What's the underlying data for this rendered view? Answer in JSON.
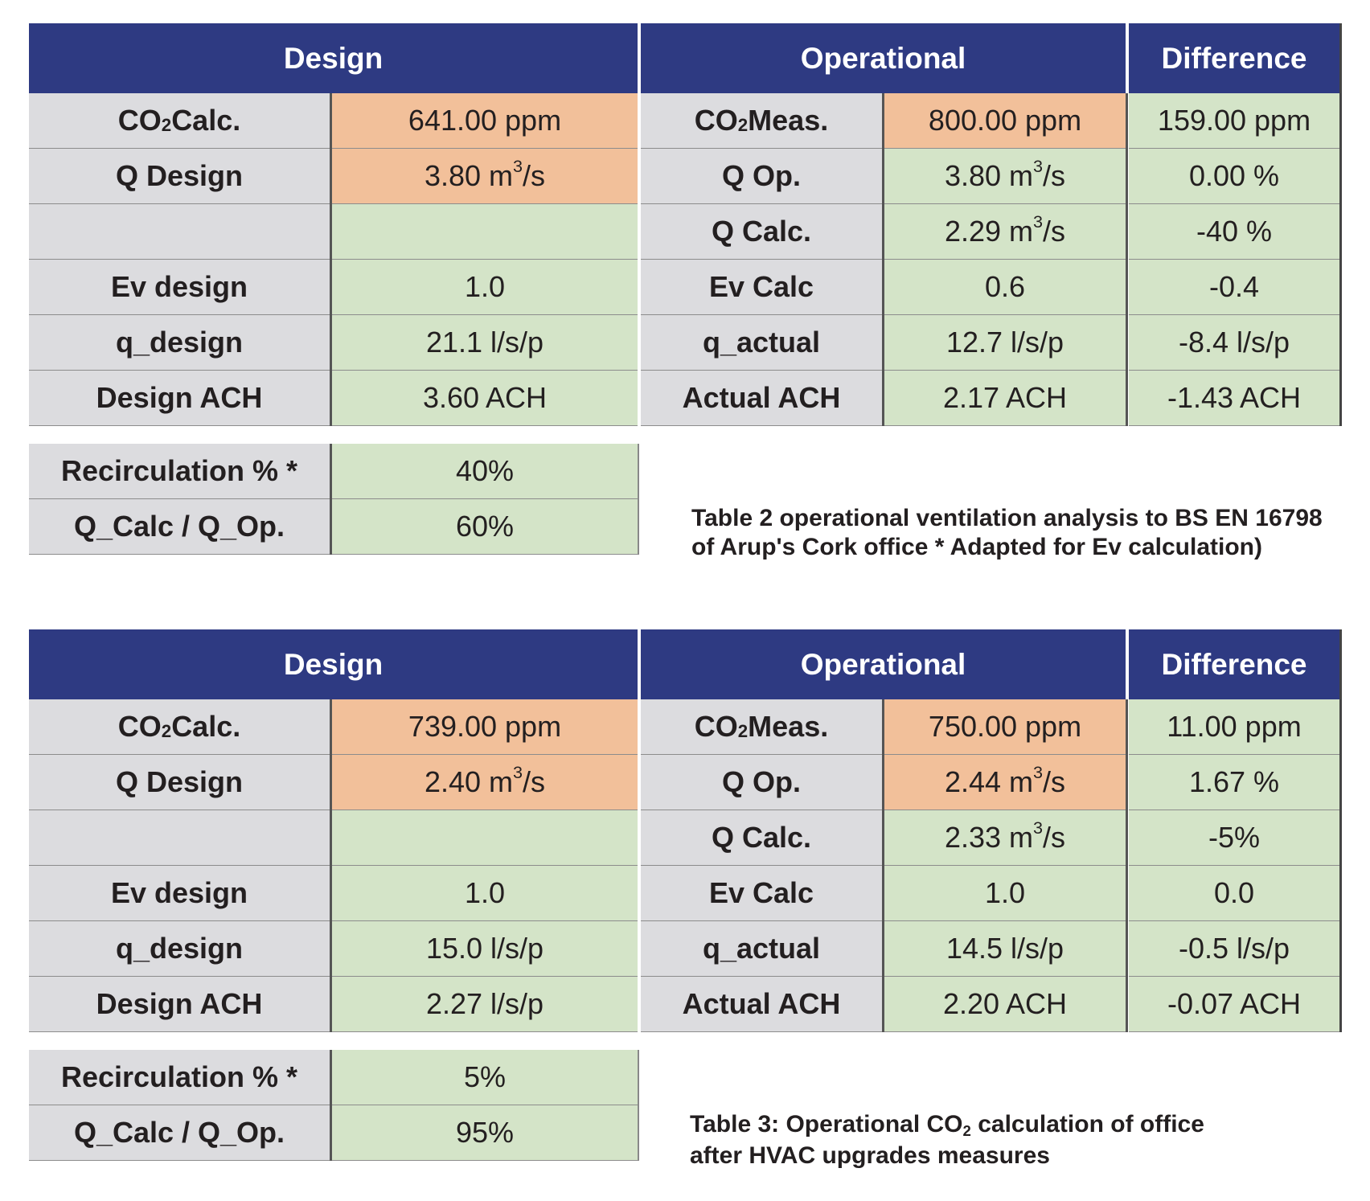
{
  "tables": [
    {
      "headers": {
        "design": "Design",
        "operational": "Operational",
        "difference": "Difference"
      },
      "rows": [
        {
          "design_label": "CO2 Calc.",
          "design_value": "641.00 ppm",
          "op_label": "CO2 Meas.",
          "op_value": "800.00 ppm",
          "difference": "159.00 ppm"
        },
        {
          "design_label": "Q Design",
          "design_value": "3.80 m3/s",
          "op_label": "Q Op.",
          "op_value": "3.80 m3/s",
          "difference": "0.00 %"
        },
        {
          "design_label": "",
          "design_value": "",
          "op_label": "Q Calc.",
          "op_value": "2.29 m3/s",
          "difference": "-40 %"
        },
        {
          "design_label": "Ev design",
          "design_value": "1.0",
          "op_label": "Ev Calc",
          "op_value": "0.6",
          "difference": "-0.4"
        },
        {
          "design_label": "q_design",
          "design_value": "21.1 l/s/p",
          "op_label": "q_actual",
          "op_value": "12.7 l/s/p",
          "difference": "-8.4 l/s/p"
        },
        {
          "design_label": "Design ACH",
          "design_value": "3.60 ACH",
          "op_label": "Actual ACH",
          "op_value": "2.17 ACH",
          "difference": "-1.43 ACH"
        }
      ],
      "extra_rows": [
        {
          "label": "Recirculation % *",
          "value": "40%"
        },
        {
          "label": "Q_Calc / Q_Op.",
          "value": "60%"
        }
      ],
      "caption_lines": [
        "Table 2 operational ventilation analysis to BS EN 16798",
        "of Arup's Cork office * Adapted for Ev calculation)"
      ]
    },
    {
      "headers": {
        "design": "Design",
        "operational": "Operational",
        "difference": "Difference"
      },
      "rows": [
        {
          "design_label": "CO2 Calc.",
          "design_value": "739.00 ppm",
          "op_label": "CO2 Meas.",
          "op_value": "750.00 ppm",
          "difference": "11.00 ppm"
        },
        {
          "design_label": "Q Design",
          "design_value": "2.40 m3/s",
          "op_label": "Q Op.",
          "op_value": "2.44 m3/s",
          "difference": "1.67 %"
        },
        {
          "design_label": "",
          "design_value": "",
          "op_label": "Q Calc.",
          "op_value": "2.33 m3/s",
          "difference": "-5%"
        },
        {
          "design_label": "Ev design",
          "design_value": "1.0",
          "op_label": "Ev Calc",
          "op_value": "1.0",
          "difference": "0.0"
        },
        {
          "design_label": "q_design",
          "design_value": "15.0 l/s/p",
          "op_label": "q_actual",
          "op_value": "14.5 l/s/p",
          "difference": "-0.5 l/s/p"
        },
        {
          "design_label": "Design ACH",
          "design_value": "2.27 l/s/p",
          "op_label": "Actual ACH",
          "op_value": "2.20 ACH",
          "difference": "-0.07 ACH"
        }
      ],
      "extra_rows": [
        {
          "label": "Recirculation % *",
          "value": "5%"
        },
        {
          "label": "Q_Calc / Q_Op.",
          "value": "95%"
        }
      ],
      "caption_lines": [
        "Table 3: Operational CO2 calculation of office",
        "after HVAC upgrades measures"
      ]
    }
  ],
  "colors": {
    "header": "#2e3a82",
    "label_cell": "#dcdcdf",
    "highlight_cell": "#f2c09a",
    "value_cell": "#d4e4c8"
  }
}
